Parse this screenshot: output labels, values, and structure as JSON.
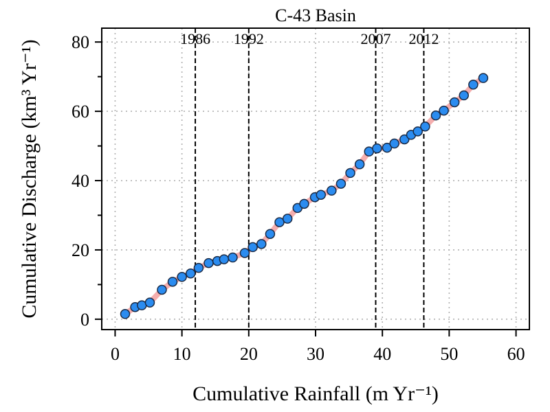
{
  "chart_data": {
    "type": "scatter",
    "title": "C-43 Basin",
    "xlabel": "Cumulative Rainfall (m Yr⁻¹)",
    "ylabel": "Cumulative Discharge (km³ Yr⁻¹)",
    "xlim": [
      -2,
      62
    ],
    "ylim": [
      -3,
      84
    ],
    "xticks": [
      0,
      10,
      20,
      30,
      40,
      50,
      60
    ],
    "yticks": [
      0,
      20,
      40,
      60,
      80
    ],
    "grid": true,
    "colors": {
      "points": "#2b8cf0",
      "point_edge": "#1a2a44",
      "trend": "#f2a0a0",
      "grid": "#b0b0b0",
      "vline": "#000000"
    },
    "vlines": [
      {
        "x": 12,
        "label": "1986"
      },
      {
        "x": 20,
        "label": "1992"
      },
      {
        "x": 39,
        "label": "2007"
      },
      {
        "x": 46.2,
        "label": "2012"
      }
    ],
    "series": [
      {
        "x": [
          1.5,
          3.0,
          4.0,
          5.2,
          7.0,
          8.6,
          10.0,
          11.3,
          12.5,
          14.0,
          15.3,
          16.3,
          17.6,
          19.4,
          20.6,
          21.9,
          23.2,
          24.6,
          25.8,
          27.3,
          28.3,
          29.9,
          30.8,
          32.4,
          33.8,
          35.2,
          36.6,
          38.0,
          39.2,
          40.7,
          41.8,
          43.3,
          44.3,
          45.3,
          46.4,
          48.0,
          49.2,
          50.8,
          52.2,
          53.6,
          55.1
        ],
        "y": [
          1.5,
          3.5,
          4.0,
          4.8,
          8.5,
          10.8,
          12.2,
          13.2,
          14.8,
          16.2,
          16.8,
          17.3,
          17.8,
          19.1,
          20.8,
          21.7,
          24.6,
          28.0,
          29.0,
          32.1,
          33.3,
          35.2,
          35.9,
          37.1,
          39.1,
          42.2,
          44.7,
          48.4,
          49.3,
          49.5,
          50.7,
          51.9,
          53.2,
          54.2,
          55.6,
          58.8,
          60.2,
          62.6,
          64.6,
          67.7,
          69.6
        ]
      }
    ]
  }
}
